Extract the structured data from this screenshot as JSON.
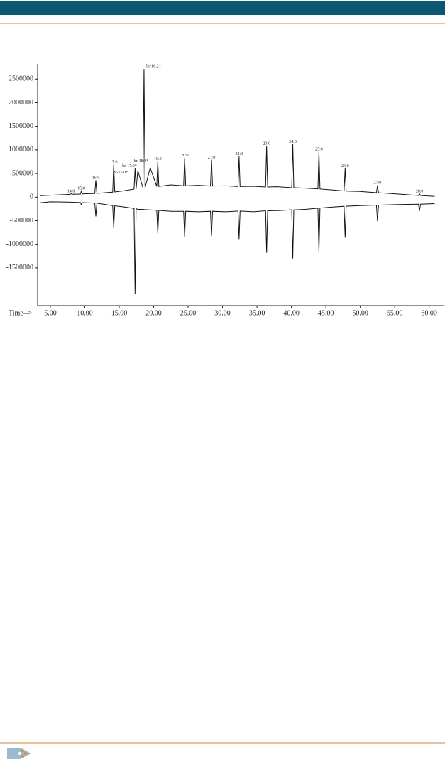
{
  "chart_data": {
    "type": "line",
    "x_label": "Time-->",
    "xlim": [
      3.15,
      62.3
    ],
    "ylim": [
      -2300000,
      2820000
    ],
    "xticks": [
      {
        "value": 5,
        "label": "5.00"
      },
      {
        "value": 10,
        "label": "10.00"
      },
      {
        "value": 15,
        "label": "15.00"
      },
      {
        "value": 20,
        "label": "20.00"
      },
      {
        "value": 25,
        "label": "25.00"
      },
      {
        "value": 30,
        "label": "30.00"
      },
      {
        "value": 35,
        "label": "35.00"
      },
      {
        "value": 40,
        "label": "40.00"
      },
      {
        "value": 45,
        "label": "45.00"
      },
      {
        "value": 50,
        "label": "50.00"
      },
      {
        "value": 55,
        "label": "55.00"
      },
      {
        "value": 60,
        "label": "60.00"
      }
    ],
    "yticks": [
      2500000,
      2000000,
      1500000,
      1000000,
      500000,
      0,
      -500000,
      -1000000,
      -1500000
    ],
    "x": [
      3.5,
      5,
      7.5,
      7.85,
      8.0,
      8.15,
      9.35,
      9.5,
      9.65,
      11.45,
      11.6,
      11.75,
      12.7,
      14.05,
      14.2,
      14.35,
      15.5,
      17.15,
      17.3,
      17.45,
      17.7,
      18.45,
      18.6,
      18.75,
      19.5,
      20.45,
      20.6,
      20.75,
      22.5,
      24.35,
      24.5,
      24.65,
      26.5,
      28.25,
      28.4,
      28.55,
      30.5,
      32.25,
      32.4,
      32.55,
      34.5,
      36.25,
      36.4,
      36.55,
      38,
      40.05,
      40.2,
      40.35,
      42,
      43.85,
      44.0,
      44.15,
      46,
      47.65,
      47.8,
      47.95,
      50,
      52.35,
      52.5,
      52.65,
      55,
      58.45,
      58.6,
      58.75,
      60.8
    ],
    "series": [
      {
        "color": "#111111",
        "values": [
          30000,
          40000,
          55000,
          58000,
          70000,
          60000,
          65000,
          130000,
          68000,
          78000,
          360000,
          80000,
          90000,
          105000,
          690000,
          110000,
          130000,
          170000,
          610000,
          175000,
          560000,
          195000,
          2710000,
          200000,
          620000,
          225000,
          760000,
          228000,
          260000,
          240000,
          830000,
          240000,
          250000,
          235000,
          790000,
          235000,
          240000,
          225000,
          860000,
          225000,
          230000,
          215000,
          1080000,
          215000,
          220000,
          200000,
          1120000,
          200000,
          190000,
          175000,
          960000,
          172000,
          150000,
          130000,
          610000,
          128000,
          120000,
          95000,
          250000,
          93000,
          70000,
          35000,
          70000,
          33000,
          15000
        ]
      },
      {
        "color": "#111111",
        "values": [
          -120000,
          -100000,
          -105000,
          -107000,
          -107000,
          -108000,
          -115000,
          -160000,
          -117000,
          -128000,
          -410000,
          -130000,
          -150000,
          -180000,
          -660000,
          -185000,
          -205000,
          -240000,
          -2050000,
          -245000,
          -260000,
          -260000,
          -265000,
          -265000,
          -270000,
          -280000,
          -770000,
          -282000,
          -300000,
          -300000,
          -850000,
          -300000,
          -310000,
          -300000,
          -820000,
          -300000,
          -310000,
          -295000,
          -890000,
          -295000,
          -310000,
          -290000,
          -1180000,
          -290000,
          -285000,
          -270000,
          -1300000,
          -270000,
          -260000,
          -235000,
          -1180000,
          -232000,
          -210000,
          -195000,
          -860000,
          -193000,
          -180000,
          -170000,
          -510000,
          -170000,
          -160000,
          -150000,
          -290000,
          -150000,
          -140000
        ]
      }
    ],
    "annotations": [
      {
        "text": "14:0",
        "x": 8.0,
        "y": 120000
      },
      {
        "text": "15:0",
        "x": 9.5,
        "y": 180000
      },
      {
        "text": "16:0",
        "x": 11.6,
        "y": 410000
      },
      {
        "text": "17:0",
        "x": 14.2,
        "y": 740000
      },
      {
        "text": "br-15:0*",
        "x": 15.2,
        "y": 520000
      },
      {
        "text": "br-17:0*",
        "x": 16.5,
        "y": 660000
      },
      {
        "text": "br-18:0*",
        "x": 18.2,
        "y": 760000
      },
      {
        "text": "br-16:2*",
        "x": 20.0,
        "y": 2770000
      },
      {
        "text": "19:0",
        "x": 20.6,
        "y": 810000
      },
      {
        "text": "20:0",
        "x": 24.5,
        "y": 880000
      },
      {
        "text": "21:0",
        "x": 28.4,
        "y": 840000
      },
      {
        "text": "22:0",
        "x": 32.4,
        "y": 910000
      },
      {
        "text": "23:0",
        "x": 36.4,
        "y": 1130000
      },
      {
        "text": "24:0",
        "x": 40.2,
        "y": 1170000
      },
      {
        "text": "25:0",
        "x": 44.0,
        "y": 1010000
      },
      {
        "text": "26:0",
        "x": 47.8,
        "y": 660000
      },
      {
        "text": "27:0",
        "x": 52.5,
        "y": 300000
      },
      {
        "text": "28:0",
        "x": 58.6,
        "y": 120000
      }
    ]
  }
}
